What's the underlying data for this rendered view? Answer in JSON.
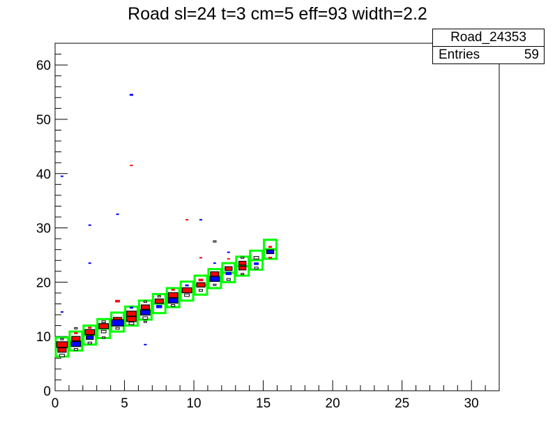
{
  "chart_data": {
    "type": "heatmap",
    "title": "Road sl=24 t=3 cm=5 eff=93 width=2.2",
    "xlim": [
      0,
      32
    ],
    "ylim": [
      0,
      64
    ],
    "xticks": [
      0,
      5,
      10,
      15,
      20,
      25,
      30
    ],
    "yticks": [
      0,
      10,
      20,
      30,
      40,
      50,
      60
    ],
    "grid": false,
    "stats": {
      "name": "Road_24353",
      "entries_label": "Entries",
      "entries": "59"
    },
    "road_cells": {
      "color": "#00ff00",
      "bins": [
        [
          0,
          6.3
        ],
        [
          1,
          7.4
        ],
        [
          2,
          8.5
        ],
        [
          3,
          9.7
        ],
        [
          4,
          10.9
        ],
        [
          5,
          12.0
        ],
        [
          6,
          13.1
        ],
        [
          7,
          14.3
        ],
        [
          8,
          15.4
        ],
        [
          9,
          16.6
        ],
        [
          10,
          17.7
        ],
        [
          11,
          18.9
        ],
        [
          12,
          20.0
        ],
        [
          13,
          21.2
        ],
        [
          14,
          22.3
        ],
        [
          15,
          24.3
        ]
      ],
      "cell_height": 1.75
    },
    "colors": {
      "red": "#ff0000",
      "blue": "#0000ff",
      "black": "#000000"
    },
    "points": [
      [
        0.5,
        8.5,
        "red",
        0.9
      ],
      [
        0.5,
        7.5,
        "red",
        0.7
      ],
      [
        0.5,
        6.5,
        "black",
        0.4
      ],
      [
        0.5,
        9.5,
        "black",
        0.2
      ],
      [
        1.5,
        9.6,
        "red",
        0.7
      ],
      [
        1.5,
        8.6,
        "blue",
        0.8
      ],
      [
        1.5,
        7.6,
        "black",
        0.3
      ],
      [
        1.5,
        10.6,
        "red",
        0.3
      ],
      [
        1.5,
        11.5,
        "black",
        0.2
      ],
      [
        2.5,
        10.8,
        "red",
        0.8
      ],
      [
        2.5,
        9.8,
        "blue",
        0.6
      ],
      [
        2.5,
        8.8,
        "black",
        0.3
      ],
      [
        2.5,
        11.6,
        "red",
        0.3
      ],
      [
        3.5,
        11.9,
        "red",
        0.8
      ],
      [
        3.5,
        10.9,
        "black",
        0.4
      ],
      [
        3.5,
        12.7,
        "black",
        0.3
      ],
      [
        3.5,
        9.8,
        "black",
        0.2
      ],
      [
        4.5,
        13.1,
        "red",
        0.7
      ],
      [
        4.5,
        12.5,
        "blue",
        1.0
      ],
      [
        4.5,
        11.5,
        "black",
        0.3
      ],
      [
        4.5,
        16.5,
        "red",
        0.4
      ],
      [
        5.5,
        14.2,
        "red",
        0.8
      ],
      [
        5.5,
        13.2,
        "red",
        0.8
      ],
      [
        5.5,
        12.4,
        "black",
        0.4
      ],
      [
        5.5,
        15.3,
        "blue",
        0.3
      ],
      [
        6.5,
        15.4,
        "red",
        0.7
      ],
      [
        6.5,
        14.4,
        "blue",
        0.8
      ],
      [
        6.5,
        13.4,
        "black",
        0.4
      ],
      [
        6.5,
        12.7,
        "black",
        0.2
      ],
      [
        6.5,
        16.4,
        "black",
        0.2
      ],
      [
        7.5,
        16.5,
        "red",
        0.7
      ],
      [
        7.5,
        15.5,
        "blue",
        0.5
      ],
      [
        7.5,
        17.4,
        "black",
        0.2
      ],
      [
        8.5,
        17.6,
        "red",
        0.8
      ],
      [
        8.5,
        16.6,
        "blue",
        0.8
      ],
      [
        8.5,
        15.7,
        "black",
        0.3
      ],
      [
        8.5,
        18.6,
        "red",
        0.3
      ],
      [
        9.5,
        18.5,
        "red",
        0.8
      ],
      [
        9.5,
        17.6,
        "black",
        0.4
      ],
      [
        9.5,
        19.4,
        "blue",
        0.3
      ],
      [
        10.5,
        19.5,
        "red",
        0.7
      ],
      [
        10.5,
        18.5,
        "black",
        0.3
      ],
      [
        10.5,
        20.4,
        "red",
        0.4
      ],
      [
        11.5,
        21.5,
        "red",
        0.7
      ],
      [
        11.5,
        20.6,
        "blue",
        0.8
      ],
      [
        11.5,
        19.5,
        "black",
        0.2
      ],
      [
        12.5,
        22.5,
        "red",
        0.6
      ],
      [
        12.5,
        21.6,
        "blue",
        0.5
      ],
      [
        12.5,
        20.5,
        "black",
        0.3
      ],
      [
        13.5,
        23.5,
        "red",
        0.6
      ],
      [
        13.5,
        22.6,
        "red",
        0.6
      ],
      [
        13.5,
        24.5,
        "black",
        0.2
      ],
      [
        13.5,
        21.5,
        "black",
        0.2
      ],
      [
        14.5,
        24.5,
        "black",
        0.4
      ],
      [
        14.5,
        23.4,
        "blue",
        0.4
      ],
      [
        14.5,
        22.6,
        "black",
        0.3
      ],
      [
        15.5,
        25.6,
        "blue",
        0.6
      ],
      [
        15.5,
        26.5,
        "red",
        0.3
      ],
      [
        15.5,
        24.5,
        "red",
        0.3
      ],
      [
        0.5,
        39.5,
        "blue",
        0.2
      ],
      [
        0.5,
        14.5,
        "blue",
        0.2
      ],
      [
        2.5,
        30.5,
        "blue",
        0.2
      ],
      [
        2.5,
        23.5,
        "blue",
        0.2
      ],
      [
        4.5,
        32.5,
        "blue",
        0.2
      ],
      [
        5.5,
        54.5,
        "blue",
        0.3
      ],
      [
        6.5,
        8.5,
        "blue",
        0.2
      ],
      [
        10.5,
        31.5,
        "blue",
        0.2
      ],
      [
        11.5,
        23.5,
        "blue",
        0.2
      ],
      [
        12.5,
        25.5,
        "blue",
        0.2
      ],
      [
        5.5,
        41.5,
        "red",
        0.2
      ],
      [
        9.5,
        31.5,
        "red",
        0.2
      ],
      [
        10.5,
        24.5,
        "red",
        0.2
      ],
      [
        12.5,
        24.3,
        "red",
        0.2
      ],
      [
        11.5,
        27.5,
        "black",
        0.1
      ]
    ]
  }
}
